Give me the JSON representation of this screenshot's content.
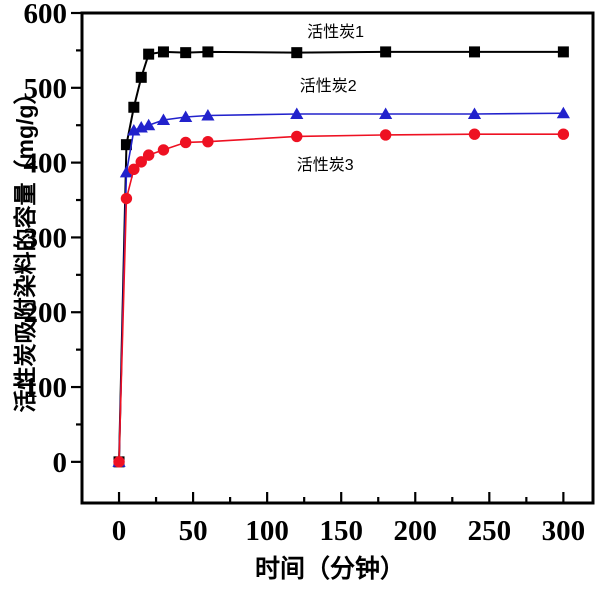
{
  "chart_data": {
    "type": "line",
    "title": "",
    "xlabel": "时间（分钟）",
    "ylabel": "活性炭吸附染料的容量（mg/g）",
    "xlim": [
      -25,
      320
    ],
    "ylim": [
      -55,
      600
    ],
    "grid": false,
    "legend_position": "inline-annotations",
    "x_major_ticks": [
      0,
      50,
      100,
      150,
      200,
      250,
      300
    ],
    "x_tick_labels": [
      "0",
      "50",
      "100",
      "150",
      "200",
      "250",
      "300"
    ],
    "x_minor_step": 25,
    "y_major_ticks": [
      0,
      100,
      200,
      300,
      400,
      500,
      600
    ],
    "y_tick_labels": [
      "0",
      "100",
      "200",
      "300",
      "400",
      "500",
      "600"
    ],
    "y_minor_step": 50,
    "x": [
      0,
      5,
      10,
      15,
      20,
      30,
      45,
      60,
      120,
      180,
      240,
      300
    ],
    "series": [
      {
        "name": "活性炭1",
        "marker": "square",
        "color": "#000000",
        "values": [
          0,
          424,
          474,
          514,
          545,
          548,
          547,
          548,
          547,
          548,
          548,
          548
        ]
      },
      {
        "name": "活性炭2",
        "marker": "triangle",
        "color": "#2222cc",
        "values": [
          0,
          387,
          443,
          447,
          450,
          457,
          461,
          463,
          465,
          465,
          465,
          466
        ]
      },
      {
        "name": "活性炭3",
        "marker": "circle",
        "color": "#ee1122",
        "values": [
          0,
          352,
          391,
          401,
          410,
          417,
          427,
          428,
          435,
          437,
          438,
          438
        ]
      }
    ],
    "annotations": [
      {
        "text": "活性炭1",
        "x": 127,
        "y": 568
      },
      {
        "text": "活性炭2",
        "x": 122,
        "y": 496
      },
      {
        "text": "活性炭3",
        "x": 120,
        "y": 390
      }
    ]
  }
}
